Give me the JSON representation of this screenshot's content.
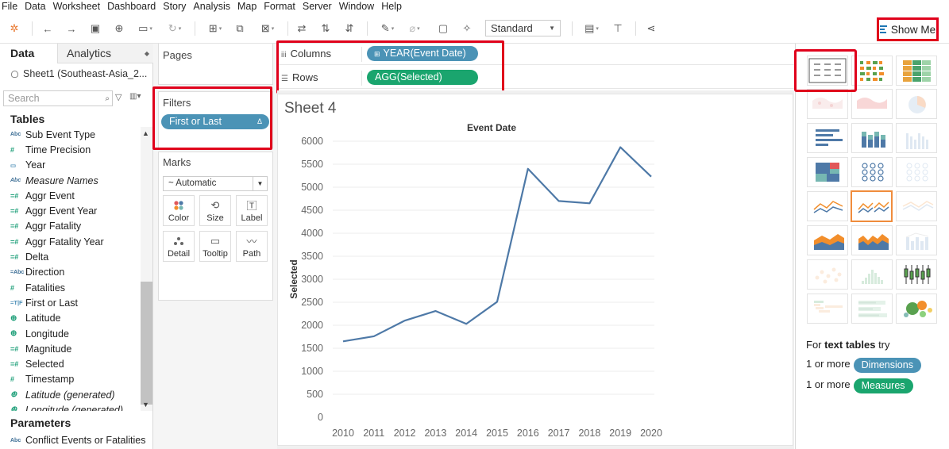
{
  "menu": [
    "File",
    "Data",
    "Worksheet",
    "Dashboard",
    "Story",
    "Analysis",
    "Map",
    "Format",
    "Server",
    "Window",
    "Help"
  ],
  "toolbar": {
    "fit_value": "Standard",
    "show_me_label": "Show Me"
  },
  "data_pane": {
    "tab_data": "Data",
    "tab_analytics": "Analytics",
    "datasource": "Sheet1 (Southeast-Asia_2...",
    "search_placeholder": "Search",
    "tables_heading": "Tables",
    "fields": [
      {
        "name": "Sub Event Type",
        "type": "Abc"
      },
      {
        "name": "Time Precision",
        "type": "#"
      },
      {
        "name": "Year",
        "type": "date"
      },
      {
        "name": "Measure Names",
        "type": "Abc",
        "italic": true
      },
      {
        "name": "Aggr Event",
        "type": "=#"
      },
      {
        "name": "Aggr Event Year",
        "type": "=#"
      },
      {
        "name": "Aggr Fatality",
        "type": "=#"
      },
      {
        "name": "Aggr Fatality Year",
        "type": "=#"
      },
      {
        "name": "Delta",
        "type": "=#"
      },
      {
        "name": "Direction",
        "type": "=Abc"
      },
      {
        "name": "Fatalities",
        "type": "#"
      },
      {
        "name": "First or Last",
        "type": "=T|F"
      },
      {
        "name": "Latitude",
        "type": "geo"
      },
      {
        "name": "Longitude",
        "type": "geo"
      },
      {
        "name": "Magnitude",
        "type": "=#"
      },
      {
        "name": "Selected",
        "type": "=#"
      },
      {
        "name": "Timestamp",
        "type": "#"
      },
      {
        "name": "Latitude (generated)",
        "type": "geo",
        "italic": true
      },
      {
        "name": "Longitude (generated)",
        "type": "geo",
        "italic": true
      }
    ],
    "parameters_heading": "Parameters",
    "parameter": "Conflict Events or Fatalities"
  },
  "cards": {
    "pages": "Pages",
    "filters": "Filters",
    "filter_pill": "First or Last",
    "marks": "Marks",
    "mark_type": "Automatic",
    "mark_buttons": [
      "Color",
      "Size",
      "Label",
      "Detail",
      "Tooltip",
      "Path"
    ]
  },
  "shelves": {
    "columns_label": "Columns",
    "rows_label": "Rows",
    "columns_pill": "YEAR(Event Date)",
    "rows_pill": "AGG(Selected)"
  },
  "sheet": {
    "title": "Sheet 4"
  },
  "chart_data": {
    "type": "line",
    "title": "Event Date",
    "xlabel": "Event Date",
    "ylabel": "Selected",
    "x": [
      2010,
      2011,
      2012,
      2013,
      2014,
      2015,
      2016,
      2017,
      2018,
      2019,
      2020
    ],
    "values": [
      1650,
      1760,
      2100,
      2310,
      2030,
      2510,
      5400,
      4700,
      4650,
      5870,
      5230
    ],
    "ylim": [
      0,
      6000
    ],
    "yticks": [
      0,
      500,
      1000,
      1500,
      2000,
      2500,
      3000,
      3500,
      4000,
      4500,
      5000,
      5500,
      6000
    ],
    "grid": true,
    "color": "#4e79a7"
  },
  "show_me": {
    "hint_prefix": "For",
    "hint_bold": "text tables",
    "hint_suffix": "try",
    "dim_prefix": "1 or more",
    "dim_label": "Dimensions",
    "mea_prefix": "1 or more",
    "mea_label": "Measures"
  }
}
